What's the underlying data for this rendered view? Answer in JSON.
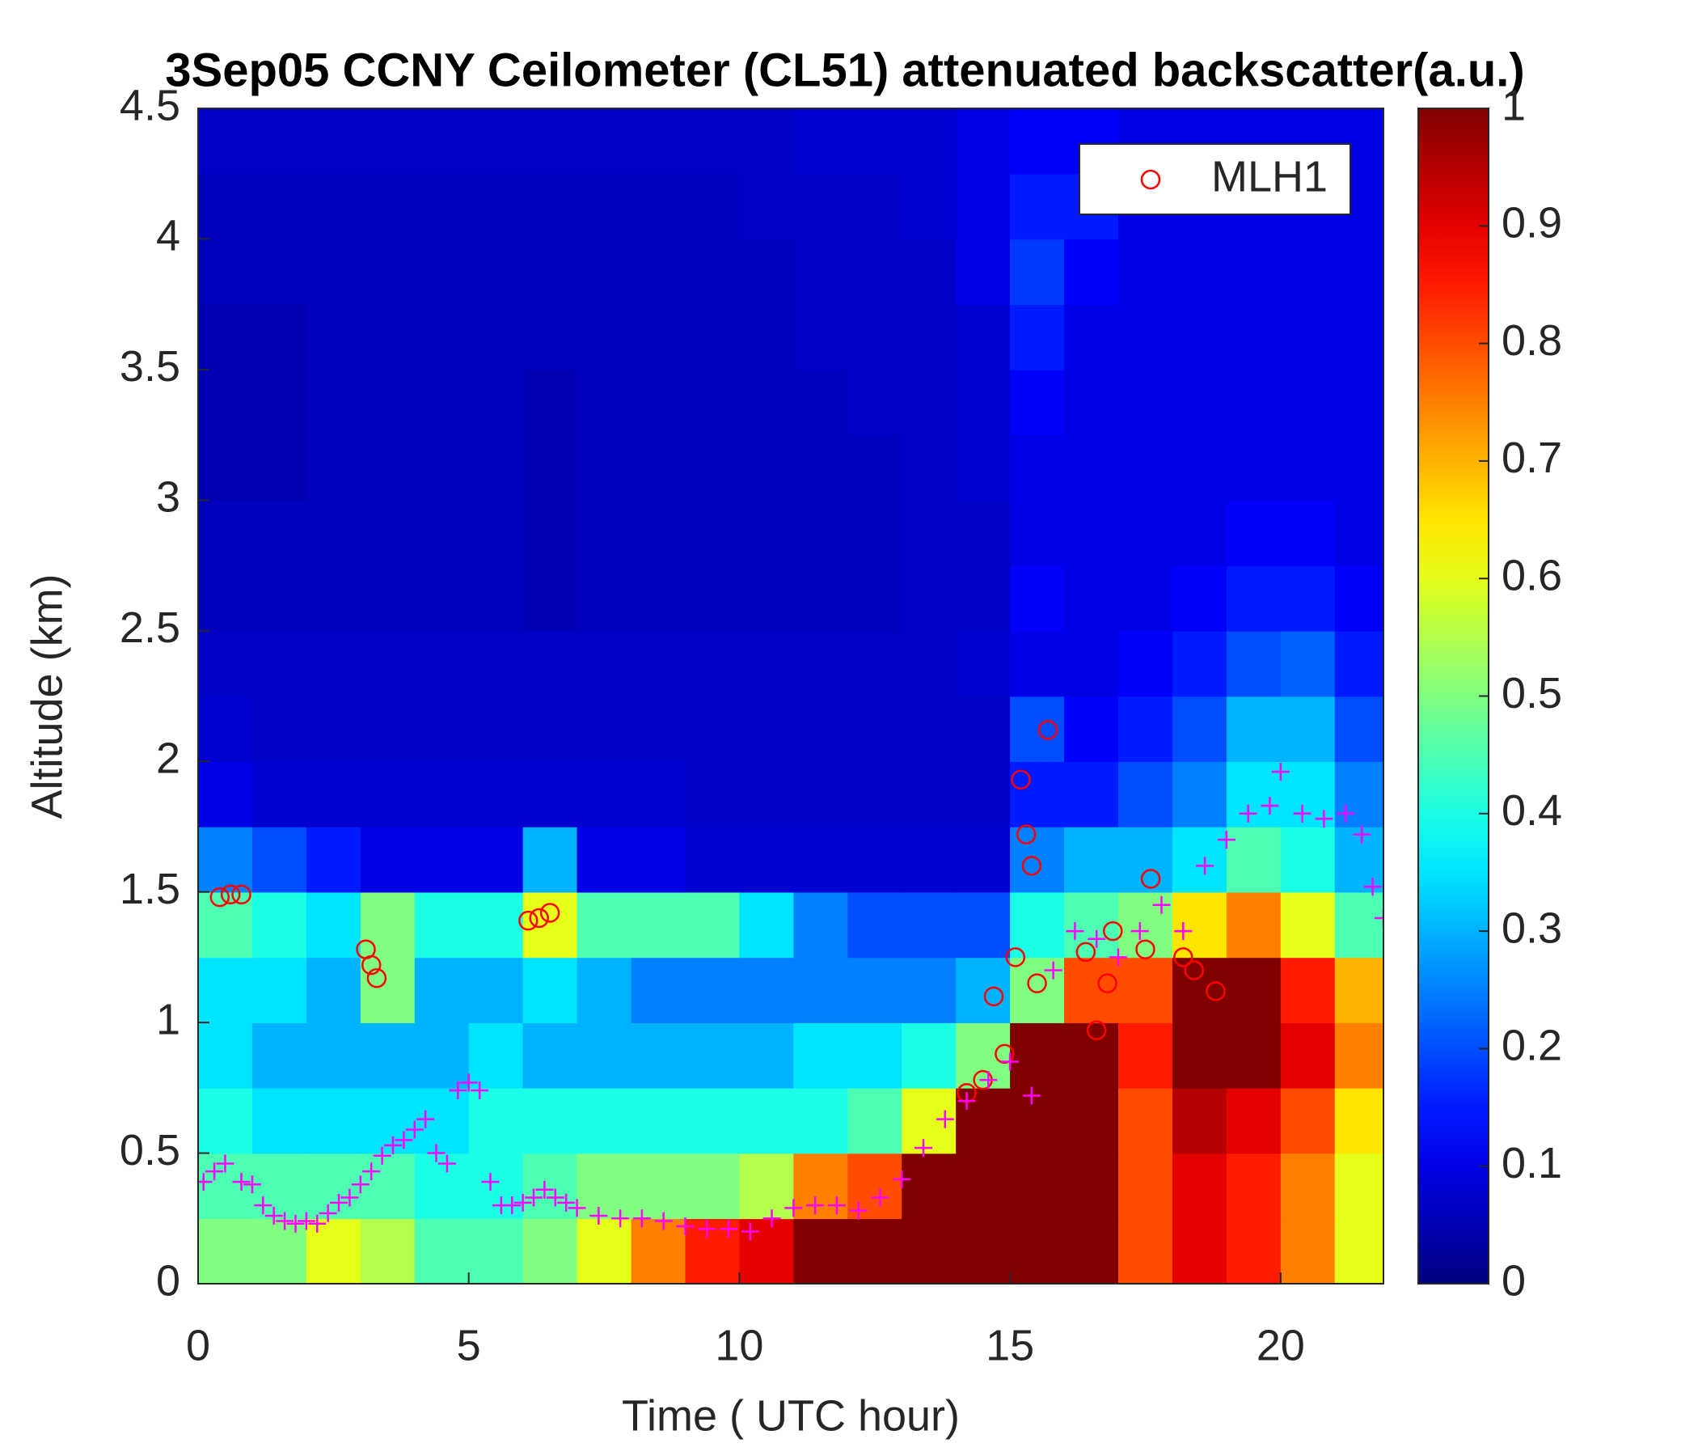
{
  "chart_data": {
    "type": "heatmap",
    "title": "3Sep05 CCNY Ceilometer (CL51) attenuated backscatter(a.u.)",
    "xlabel": "Time ( UTC hour)",
    "ylabel": "Altitude (km)",
    "xlim": [
      0,
      21.9
    ],
    "xticks": [
      0,
      5,
      10,
      15,
      20
    ],
    "ylim": [
      0,
      4.5
    ],
    "yticks": [
      0,
      0.5,
      1,
      1.5,
      2,
      2.5,
      3,
      3.5,
      4,
      4.5
    ],
    "colormap": "jet",
    "clim": [
      0,
      1
    ],
    "cticks": [
      0,
      0.1,
      0.2,
      0.3,
      0.4,
      0.5,
      0.6,
      0.7,
      0.8,
      0.9,
      1
    ],
    "legend_position": "upper right",
    "x": [
      0.5,
      1.5,
      2.5,
      3.5,
      4.5,
      5.5,
      6.5,
      7.5,
      8.5,
      9.5,
      10.5,
      11.5,
      12.5,
      13.5,
      14.5,
      15.5,
      16.5,
      17.5,
      18.5,
      19.5,
      20.5,
      21.5
    ],
    "y": [
      0.125,
      0.375,
      0.625,
      0.875,
      1.125,
      1.375,
      1.625,
      1.875,
      2.125,
      2.375,
      2.625,
      2.875,
      3.125,
      3.375,
      3.625,
      3.875,
      4.125,
      4.375
    ],
    "z": [
      [
        0.5,
        0.5,
        0.6,
        0.55,
        0.45,
        0.45,
        0.5,
        0.6,
        0.75,
        0.85,
        0.9,
        1,
        1,
        1,
        1,
        1,
        1,
        0.8,
        0.9,
        0.85,
        0.75,
        0.6
      ],
      [
        0.45,
        0.45,
        0.45,
        0.45,
        0.4,
        0.4,
        0.45,
        0.5,
        0.5,
        0.5,
        0.55,
        0.75,
        0.8,
        1,
        1,
        1,
        1,
        0.8,
        0.9,
        0.85,
        0.75,
        0.6
      ],
      [
        0.4,
        0.35,
        0.35,
        0.35,
        0.35,
        0.4,
        0.4,
        0.4,
        0.4,
        0.4,
        0.4,
        0.4,
        0.45,
        0.6,
        1,
        1,
        1,
        0.8,
        0.95,
        0.9,
        0.8,
        0.65
      ],
      [
        0.35,
        0.3,
        0.3,
        0.3,
        0.3,
        0.35,
        0.3,
        0.3,
        0.3,
        0.3,
        0.3,
        0.35,
        0.35,
        0.4,
        0.5,
        1,
        1,
        0.85,
        1,
        1,
        0.9,
        0.75
      ],
      [
        0.35,
        0.35,
        0.3,
        0.5,
        0.3,
        0.3,
        0.35,
        0.3,
        0.25,
        0.25,
        0.25,
        0.25,
        0.25,
        0.25,
        0.3,
        0.5,
        0.8,
        0.8,
        1,
        1,
        0.85,
        0.7
      ],
      [
        0.45,
        0.4,
        0.35,
        0.5,
        0.4,
        0.4,
        0.6,
        0.45,
        0.45,
        0.45,
        0.35,
        0.25,
        0.2,
        0.2,
        0.2,
        0.4,
        0.45,
        0.5,
        0.65,
        0.75,
        0.6,
        0.45
      ],
      [
        0.25,
        0.2,
        0.15,
        0.1,
        0.1,
        0.1,
        0.3,
        0.1,
        0.1,
        0.08,
        0.08,
        0.08,
        0.08,
        0.08,
        0.08,
        0.25,
        0.3,
        0.3,
        0.35,
        0.45,
        0.4,
        0.3
      ],
      [
        0.1,
        0.08,
        0.08,
        0.08,
        0.08,
        0.08,
        0.08,
        0.08,
        0.08,
        0.07,
        0.07,
        0.07,
        0.07,
        0.07,
        0.07,
        0.15,
        0.15,
        0.2,
        0.25,
        0.35,
        0.35,
        0.25
      ],
      [
        0.08,
        0.07,
        0.07,
        0.07,
        0.07,
        0.07,
        0.07,
        0.07,
        0.07,
        0.07,
        0.07,
        0.07,
        0.07,
        0.07,
        0.07,
        0.2,
        0.12,
        0.15,
        0.2,
        0.3,
        0.3,
        0.2
      ],
      [
        0.07,
        0.07,
        0.07,
        0.07,
        0.07,
        0.07,
        0.07,
        0.07,
        0.07,
        0.07,
        0.07,
        0.07,
        0.07,
        0.07,
        0.08,
        0.1,
        0.1,
        0.12,
        0.15,
        0.2,
        0.22,
        0.15
      ],
      [
        0.06,
        0.06,
        0.06,
        0.06,
        0.06,
        0.06,
        0.05,
        0.06,
        0.06,
        0.06,
        0.06,
        0.06,
        0.06,
        0.07,
        0.07,
        0.12,
        0.1,
        0.1,
        0.12,
        0.15,
        0.15,
        0.12
      ],
      [
        0.06,
        0.06,
        0.06,
        0.06,
        0.06,
        0.06,
        0.05,
        0.06,
        0.06,
        0.06,
        0.06,
        0.06,
        0.06,
        0.07,
        0.07,
        0.1,
        0.1,
        0.1,
        0.1,
        0.12,
        0.12,
        0.1
      ],
      [
        0.05,
        0.05,
        0.06,
        0.06,
        0.06,
        0.06,
        0.05,
        0.06,
        0.06,
        0.06,
        0.06,
        0.06,
        0.06,
        0.07,
        0.08,
        0.1,
        0.1,
        0.1,
        0.1,
        0.1,
        0.1,
        0.1
      ],
      [
        0.05,
        0.05,
        0.06,
        0.06,
        0.06,
        0.06,
        0.05,
        0.06,
        0.06,
        0.06,
        0.06,
        0.06,
        0.07,
        0.07,
        0.08,
        0.12,
        0.1,
        0.1,
        0.1,
        0.1,
        0.1,
        0.1
      ],
      [
        0.05,
        0.05,
        0.06,
        0.06,
        0.06,
        0.06,
        0.06,
        0.06,
        0.06,
        0.06,
        0.06,
        0.07,
        0.07,
        0.07,
        0.08,
        0.15,
        0.1,
        0.1,
        0.1,
        0.1,
        0.1,
        0.1
      ],
      [
        0.06,
        0.06,
        0.06,
        0.06,
        0.06,
        0.06,
        0.06,
        0.06,
        0.06,
        0.06,
        0.06,
        0.07,
        0.07,
        0.07,
        0.1,
        0.18,
        0.12,
        0.1,
        0.1,
        0.1,
        0.1,
        0.1
      ],
      [
        0.06,
        0.06,
        0.06,
        0.06,
        0.06,
        0.06,
        0.06,
        0.06,
        0.06,
        0.06,
        0.07,
        0.07,
        0.07,
        0.08,
        0.1,
        0.15,
        0.15,
        0.1,
        0.1,
        0.1,
        0.1,
        0.1
      ],
      [
        0.07,
        0.07,
        0.07,
        0.07,
        0.07,
        0.07,
        0.07,
        0.07,
        0.07,
        0.07,
        0.07,
        0.08,
        0.08,
        0.08,
        0.1,
        0.12,
        0.12,
        0.1,
        0.1,
        0.1,
        0.1,
        0.1
      ]
    ],
    "overlays": [
      {
        "name": "MLH1",
        "marker": "o",
        "color": "#ff0000",
        "x": [
          0.4,
          0.6,
          0.8,
          3.1,
          3.2,
          3.3,
          6.1,
          6.3,
          6.5,
          14.2,
          14.5,
          14.7,
          14.9,
          15.1,
          15.2,
          15.3,
          15.4,
          15.5,
          15.7,
          16.4,
          16.6,
          16.8,
          16.9,
          17.5,
          17.6,
          18.2,
          18.4,
          18.8
        ],
        "values": [
          1.48,
          1.49,
          1.49,
          1.28,
          1.22,
          1.17,
          1.39,
          1.4,
          1.42,
          0.73,
          0.78,
          1.1,
          0.88,
          1.25,
          1.93,
          1.72,
          1.6,
          1.15,
          2.12,
          1.27,
          0.97,
          1.15,
          1.35,
          1.28,
          1.55,
          1.25,
          1.2,
          1.12
        ]
      },
      {
        "marker": "+",
        "color": "#ff00ff",
        "x": [
          0.1,
          0.3,
          0.5,
          0.8,
          1.0,
          1.2,
          1.4,
          1.6,
          1.8,
          2.0,
          2.2,
          2.4,
          2.6,
          2.8,
          3.0,
          3.2,
          3.4,
          3.6,
          3.8,
          4.0,
          4.2,
          4.4,
          4.6,
          4.8,
          5.0,
          5.2,
          5.4,
          5.6,
          5.8,
          6.0,
          6.2,
          6.4,
          6.6,
          6.8,
          7.0,
          7.4,
          7.8,
          8.2,
          8.6,
          9.0,
          9.4,
          9.8,
          10.2,
          10.6,
          11.0,
          11.4,
          11.8,
          12.2,
          12.6,
          13.0,
          13.4,
          13.8,
          14.2,
          14.6,
          15.0,
          15.4,
          15.8,
          16.2,
          16.6,
          17.0,
          17.4,
          17.8,
          18.2,
          18.6,
          19.0,
          19.4,
          19.8,
          20.0,
          20.4,
          20.8,
          21.2,
          21.5,
          21.7,
          21.9
        ],
        "values": [
          0.39,
          0.43,
          0.46,
          0.39,
          0.38,
          0.3,
          0.26,
          0.24,
          0.23,
          0.24,
          0.23,
          0.27,
          0.31,
          0.33,
          0.38,
          0.43,
          0.49,
          0.53,
          0.55,
          0.59,
          0.63,
          0.5,
          0.46,
          0.74,
          0.77,
          0.74,
          0.39,
          0.3,
          0.3,
          0.31,
          0.33,
          0.36,
          0.33,
          0.31,
          0.29,
          0.26,
          0.25,
          0.25,
          0.24,
          0.22,
          0.21,
          0.21,
          0.2,
          0.25,
          0.29,
          0.3,
          0.3,
          0.28,
          0.33,
          0.4,
          0.52,
          0.63,
          0.7,
          0.78,
          0.85,
          0.72,
          1.2,
          1.35,
          1.32,
          1.25,
          1.35,
          1.45,
          1.35,
          1.6,
          1.7,
          1.8,
          1.83,
          1.96,
          1.8,
          1.78,
          1.8,
          1.72,
          1.52,
          1.4
        ]
      }
    ]
  }
}
